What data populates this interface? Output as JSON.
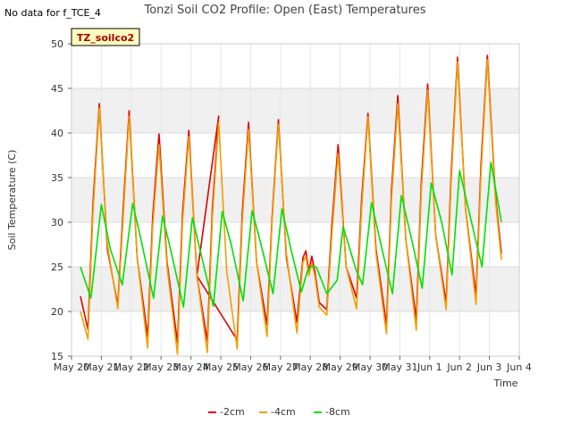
{
  "nodata_note": "No data for f_TCE_4",
  "badge_label": "TZ_soilco2",
  "chart_data": {
    "type": "line",
    "title": "Tonzi Soil CO2 Profile: Open (East) Temperatures",
    "xlabel": "Time",
    "ylabel": "Soil Temperature (C)",
    "xlim": [
      "May 20",
      "Jun 4"
    ],
    "ylim": [
      15,
      50
    ],
    "yticks": [
      15,
      20,
      25,
      30,
      35,
      40,
      45,
      50
    ],
    "xticks": [
      "May 20",
      "May 21",
      "May 22",
      "May 23",
      "May 24",
      "May 25",
      "May 26",
      "May 27",
      "May 28",
      "May 29",
      "May 30",
      "May 31",
      "Jun 1",
      "Jun 2",
      "Jun 3",
      "Jun 4"
    ],
    "x_unit": "days since May 20",
    "grid": true,
    "shaded_bands": [
      [
        20,
        25
      ],
      [
        30,
        35
      ],
      [
        40,
        45
      ]
    ],
    "legend_position": "bottom",
    "series": [
      {
        "name": "-2cm",
        "color": "#dd0000",
        "x": [
          0.3,
          0.55,
          0.72,
          0.93,
          1.2,
          1.55,
          1.73,
          1.93,
          2.2,
          2.55,
          2.72,
          2.93,
          3.2,
          3.55,
          3.72,
          3.93,
          4.2,
          4.55,
          4.72,
          4.93,
          4.2,
          5.55,
          5.72,
          5.93,
          6.2,
          6.55,
          6.72,
          6.93,
          7.2,
          7.55,
          7.75,
          7.85,
          7.95,
          8.05,
          8.15,
          8.3,
          8.55,
          8.72,
          8.93,
          9.2,
          9.55,
          9.72,
          9.93,
          10.2,
          10.55,
          10.72,
          10.93,
          11.2,
          11.55,
          11.72,
          11.93,
          12.2,
          12.55,
          12.72,
          12.93,
          13.2,
          13.55,
          13.72,
          13.93,
          14.2,
          14.4
        ],
        "y": [
          21.7,
          18.0,
          32.0,
          43.3,
          27.0,
          20.7,
          31.5,
          42.5,
          26.0,
          17.2,
          30.5,
          39.9,
          25.5,
          16.5,
          31.0,
          40.3,
          24.0,
          16.7,
          31.5,
          41.9,
          24.0,
          16.8,
          31.0,
          41.2,
          25.5,
          18.5,
          30.5,
          41.5,
          26.0,
          18.8,
          26.0,
          26.8,
          24.5,
          26.2,
          24.5,
          21.0,
          20.2,
          29.5,
          38.7,
          25.0,
          21.5,
          32.5,
          42.2,
          27.0,
          18.5,
          33.5,
          44.2,
          28.0,
          19.1,
          34.5,
          45.5,
          28.5,
          21.0,
          35.5,
          48.5,
          31.5,
          21.8,
          36.5,
          48.7,
          33.0,
          26.5
        ]
      },
      {
        "name": "-4cm",
        "color": "#f0a000",
        "x": [
          0.3,
          0.55,
          0.72,
          0.93,
          1.2,
          1.55,
          1.73,
          1.93,
          2.2,
          2.55,
          2.72,
          2.93,
          3.2,
          3.55,
          3.72,
          3.93,
          4.2,
          4.55,
          4.72,
          4.93,
          5.2,
          5.55,
          5.72,
          5.93,
          6.2,
          6.55,
          6.72,
          6.93,
          7.2,
          7.55,
          7.75,
          7.85,
          7.95,
          8.05,
          8.15,
          8.3,
          8.55,
          8.72,
          8.93,
          9.2,
          9.55,
          9.72,
          9.93,
          10.2,
          10.55,
          10.72,
          10.93,
          11.2,
          11.55,
          11.72,
          11.93,
          12.2,
          12.55,
          12.72,
          12.93,
          13.2,
          13.55,
          13.72,
          13.93,
          14.2,
          14.4
        ],
        "y": [
          20.0,
          16.9,
          31.0,
          42.8,
          27.5,
          20.3,
          30.5,
          41.9,
          26.0,
          15.9,
          29.5,
          38.7,
          25.0,
          15.2,
          30.0,
          39.6,
          24.0,
          15.4,
          30.5,
          41.2,
          24.5,
          15.8,
          30.0,
          40.4,
          25.5,
          17.2,
          30.0,
          41.0,
          26.5,
          17.6,
          25.5,
          26.2,
          24.0,
          25.5,
          24.0,
          20.5,
          19.6,
          28.5,
          37.7,
          25.0,
          20.3,
          31.5,
          41.8,
          26.5,
          17.5,
          32.5,
          43.3,
          28.0,
          17.9,
          33.5,
          44.8,
          28.5,
          20.2,
          34.5,
          48.0,
          31.5,
          20.8,
          35.5,
          48.2,
          32.5,
          25.8
        ]
      },
      {
        "name": "-8cm",
        "color": "#00e000",
        "x": [
          0.3,
          0.65,
          1.0,
          1.3,
          1.7,
          2.05,
          2.3,
          2.75,
          3.05,
          3.35,
          3.75,
          4.05,
          4.3,
          4.75,
          5.05,
          5.35,
          5.75,
          6.05,
          6.35,
          6.75,
          7.05,
          7.35,
          7.7,
          7.9,
          8.0,
          8.2,
          8.55,
          8.9,
          9.1,
          9.55,
          9.75,
          10.05,
          10.4,
          10.75,
          11.05,
          11.4,
          11.75,
          12.05,
          12.4,
          12.75,
          13.0,
          13.4,
          13.75,
          14.05,
          14.3,
          14.4
        ],
        "y": [
          25.0,
          21.5,
          32.0,
          27.0,
          23.0,
          32.1,
          28.5,
          21.5,
          30.7,
          26.5,
          20.5,
          30.5,
          27.0,
          20.6,
          31.2,
          27.5,
          21.2,
          31.3,
          27.5,
          22.0,
          31.5,
          27.0,
          22.2,
          24.5,
          25.0,
          25.0,
          22.0,
          23.5,
          29.5,
          24.5,
          23.0,
          32.2,
          27.0,
          22.0,
          33.0,
          28.0,
          22.6,
          34.4,
          30.0,
          24.1,
          35.8,
          30.0,
          25.0,
          36.7,
          32.0,
          30.0
        ]
      }
    ]
  }
}
